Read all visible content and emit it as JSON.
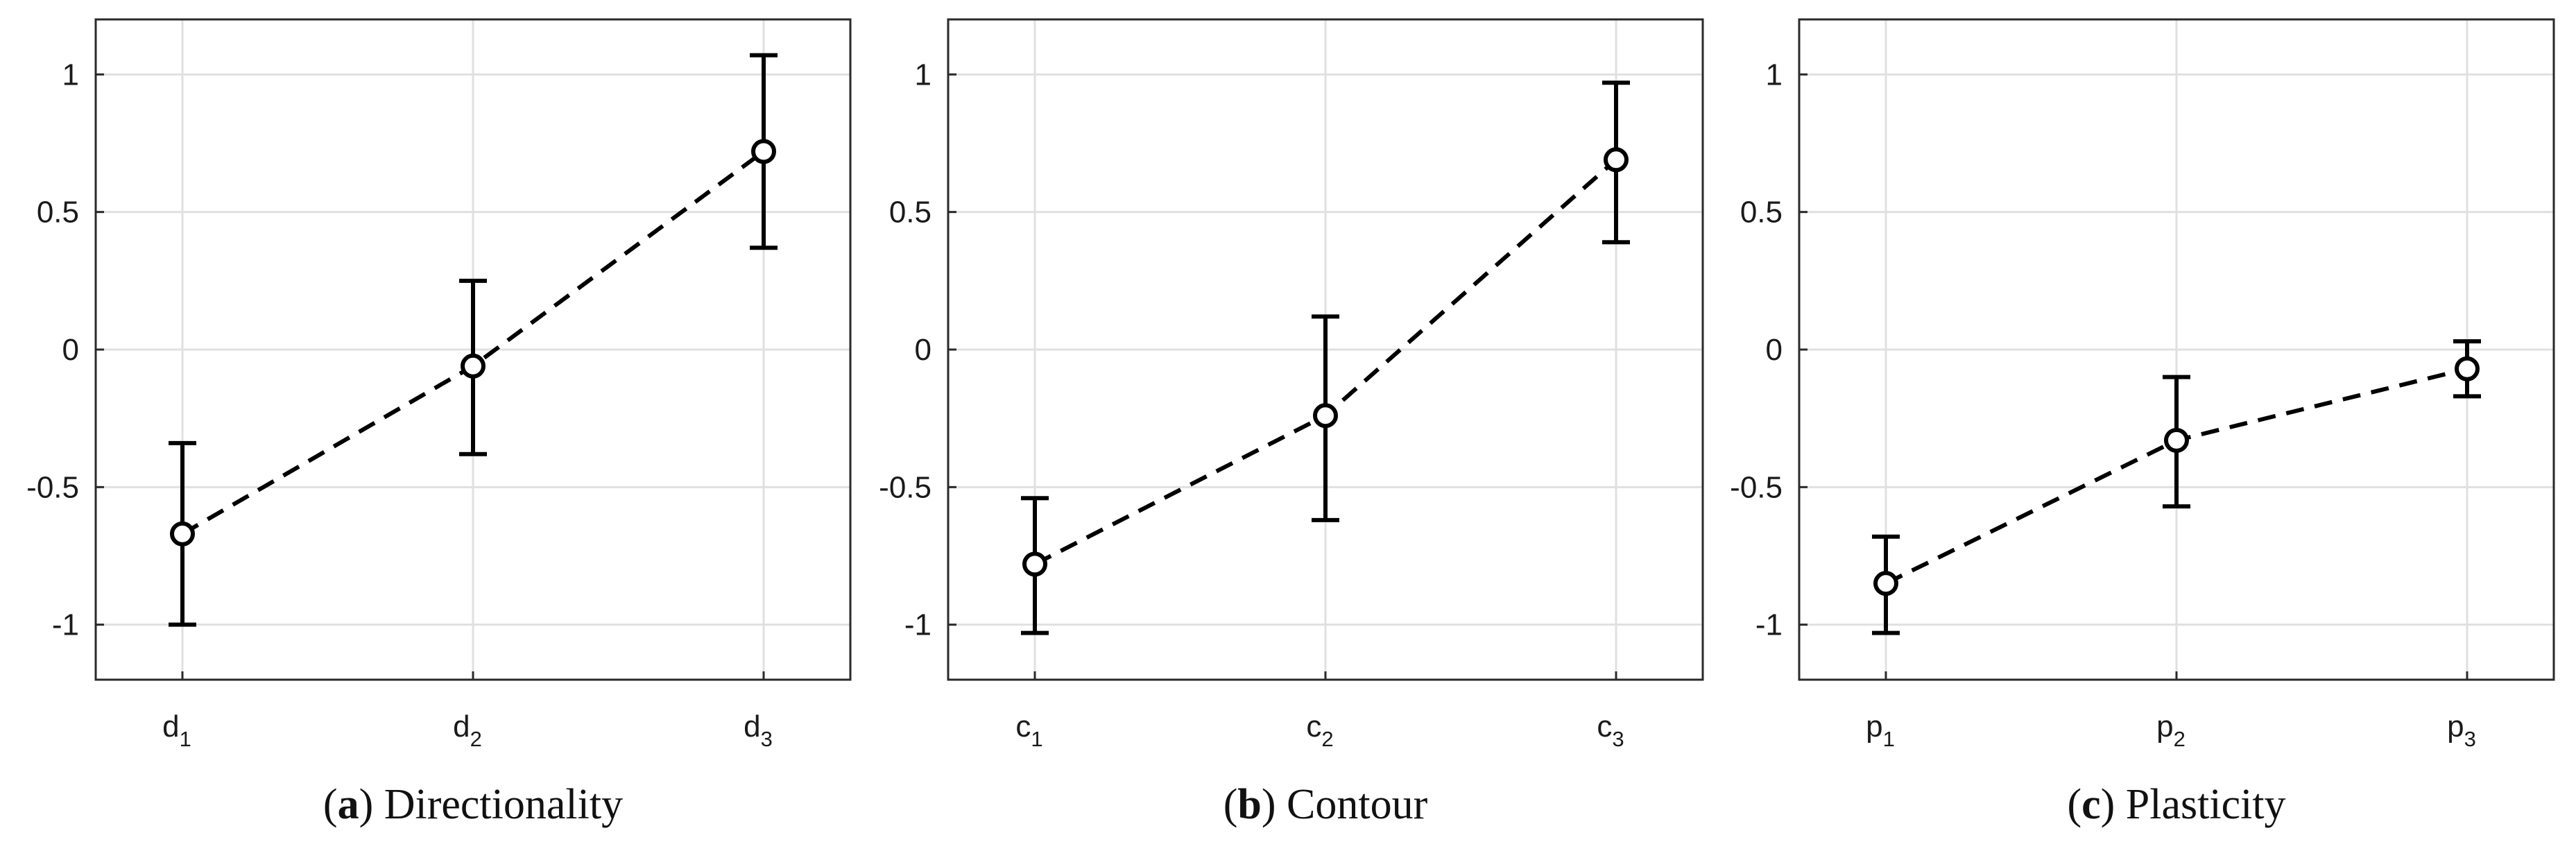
{
  "chart_data": [
    {
      "type": "line",
      "caption_letter": "a",
      "caption_text": "Directionality",
      "categories": [
        {
          "base": "d",
          "sub": "1"
        },
        {
          "base": "d",
          "sub": "2"
        },
        {
          "base": "d",
          "sub": "3"
        }
      ],
      "values": [
        -0.67,
        -0.06,
        0.72
      ],
      "err_low": [
        -1.0,
        -0.38,
        0.37
      ],
      "err_high": [
        -0.34,
        0.25,
        1.07
      ],
      "ylim": [
        -1.2,
        1.2
      ],
      "yticks": [
        "-1",
        "-0.5",
        "0",
        "0.5",
        "1"
      ],
      "grid": true
    },
    {
      "type": "line",
      "caption_letter": "b",
      "caption_text": "Contour",
      "categories": [
        {
          "base": "c",
          "sub": "1"
        },
        {
          "base": "c",
          "sub": "2"
        },
        {
          "base": "c",
          "sub": "3"
        }
      ],
      "values": [
        -0.78,
        -0.24,
        0.69
      ],
      "err_low": [
        -1.03,
        -0.62,
        0.39
      ],
      "err_high": [
        -0.54,
        0.12,
        0.97
      ],
      "ylim": [
        -1.2,
        1.2
      ],
      "yticks": [
        "-1",
        "-0.5",
        "0",
        "0.5",
        "1"
      ],
      "grid": true
    },
    {
      "type": "line",
      "caption_letter": "c",
      "caption_text": "Plasticity",
      "categories": [
        {
          "base": "p",
          "sub": "1"
        },
        {
          "base": "p",
          "sub": "2"
        },
        {
          "base": "p",
          "sub": "3"
        }
      ],
      "values": [
        -0.85,
        -0.33,
        -0.07
      ],
      "err_low": [
        -1.03,
        -0.57,
        -0.17
      ],
      "err_high": [
        -0.68,
        -0.1,
        0.03
      ],
      "ylim": [
        -1.2,
        1.2
      ],
      "yticks": [
        "-1",
        "-0.5",
        "0",
        "0.5",
        "1"
      ],
      "grid": true
    }
  ],
  "colors": {
    "line": "#000000",
    "grid": "#e0e0e0",
    "axes": "#2a2a2a",
    "marker_fill": "#ffffff"
  }
}
